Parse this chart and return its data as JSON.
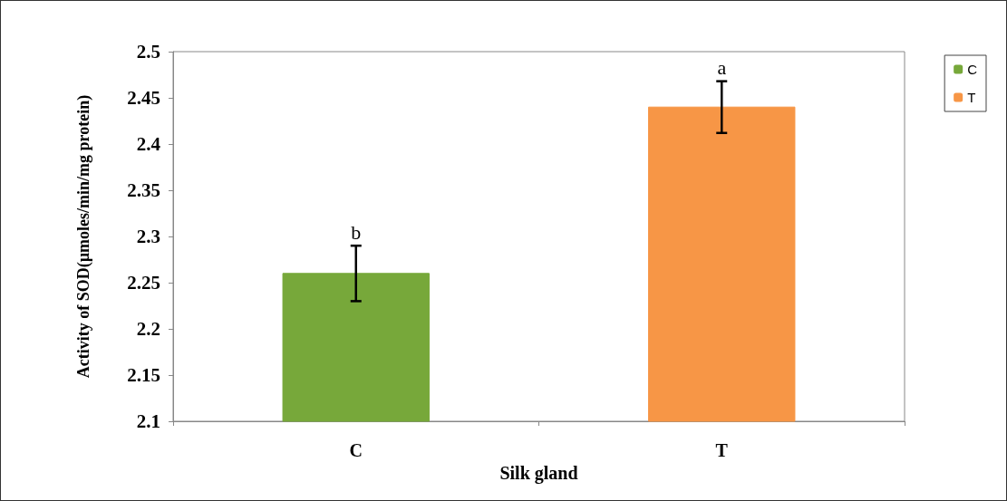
{
  "chart_data": {
    "type": "bar",
    "xlabel": "Silk gland",
    "ylabel": "Activity of SOD(µmoles/min/mg protein)",
    "categories": [
      "C",
      "T"
    ],
    "series": [
      {
        "name": "C",
        "color": "#77a83a",
        "values": [
          2.26,
          null
        ],
        "errors": [
          0.03,
          null
        ]
      },
      {
        "name": "T",
        "color": "#f79646",
        "values": [
          null,
          2.44
        ],
        "errors": [
          null,
          0.028
        ]
      }
    ],
    "ylim": [
      2.1,
      2.5
    ],
    "yticks": [
      2.1,
      2.15,
      2.2,
      2.25,
      2.3,
      2.35,
      2.4,
      2.45,
      2.5
    ],
    "grid": false,
    "legend": "right",
    "annotations": [
      "b",
      "a"
    ]
  }
}
